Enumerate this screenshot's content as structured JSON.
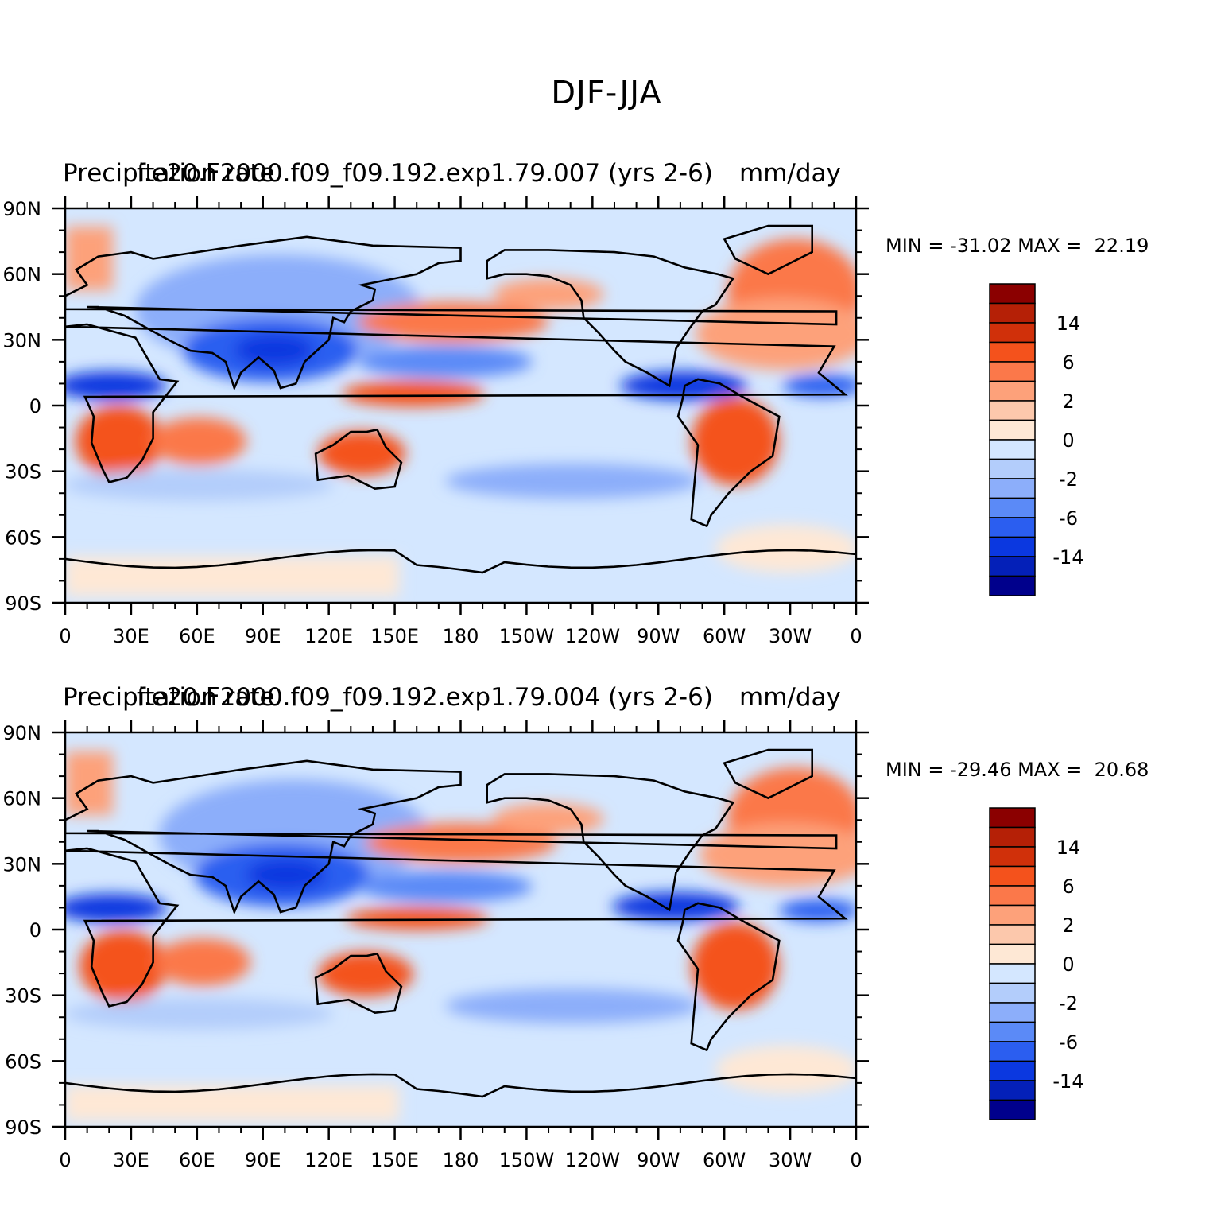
{
  "page": {
    "title": "DJF-JJA"
  },
  "chart_data": [
    {
      "type": "heatmap",
      "title_left": "Precipitation rate",
      "title_center": "f.e20.F2000.f09_f09.192.exp1.79.007 (yrs 2-6)",
      "title_right": "mm/day",
      "stats": "MIN = -31.02 MAX =  22.19",
      "min": -31.02,
      "max": 22.19,
      "y_ticks": [
        "90N",
        "60N",
        "30N",
        "0",
        "30S",
        "60S",
        "90S"
      ],
      "x_ticks": [
        "0",
        "30E",
        "60E",
        "90E",
        "120E",
        "150E",
        "180",
        "150W",
        "120W",
        "90W",
        "60W",
        "30W",
        "0"
      ],
      "colorbar_labels": [
        "14",
        "6",
        "2",
        "0",
        "-2",
        "-6",
        "-14"
      ]
    },
    {
      "type": "heatmap",
      "title_left": "Precipitation rate",
      "title_center": "f.e20.F2000.f09_f09.192.exp1.79.004 (yrs 2-6)",
      "title_right": "mm/day",
      "stats": "MIN = -29.46 MAX =  20.68",
      "min": -29.46,
      "max": 20.68,
      "y_ticks": [
        "90N",
        "60N",
        "30N",
        "0",
        "30S",
        "60S",
        "90S"
      ],
      "x_ticks": [
        "0",
        "30E",
        "60E",
        "90E",
        "120E",
        "150E",
        "180",
        "150W",
        "120W",
        "90W",
        "60W",
        "30W",
        "0"
      ],
      "colorbar_labels": [
        "14",
        "6",
        "2",
        "0",
        "-2",
        "-6",
        "-14"
      ]
    }
  ],
  "colorbar_colors": [
    "#8b0000",
    "#b52006",
    "#d0300a",
    "#f4521c",
    "#fb784a",
    "#fda17a",
    "#fcc8ac",
    "#fee8d5",
    "#d4e7ff",
    "#b3cdfb",
    "#8caefa",
    "#5b8af7",
    "#2b5ef0",
    "#0b38e0",
    "#0420b8",
    "#00008c"
  ]
}
